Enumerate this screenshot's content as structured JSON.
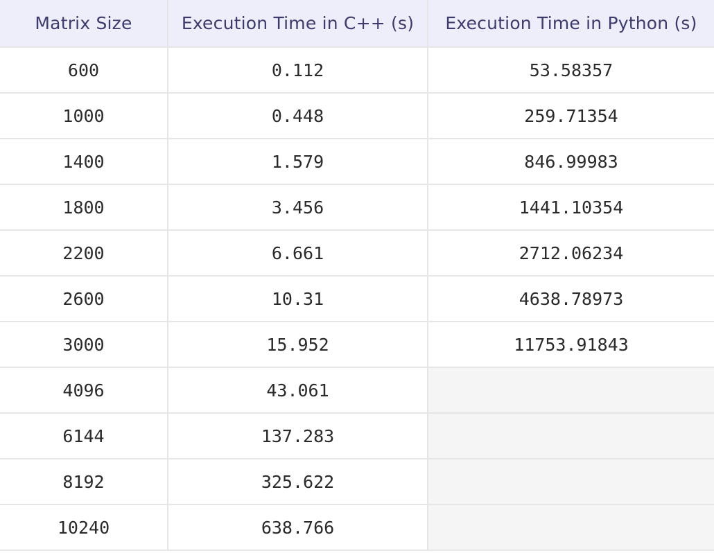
{
  "table": {
    "headers": [
      "Matrix Size",
      "Execution Time in C++ (s)",
      "Execution Time in Python (s)"
    ],
    "rows": [
      [
        "600",
        "0.112",
        "53.58357"
      ],
      [
        "1000",
        "0.448",
        "259.71354"
      ],
      [
        "1400",
        "1.579",
        "846.99983"
      ],
      [
        "1800",
        "3.456",
        "1441.10354"
      ],
      [
        "2200",
        "6.661",
        "2712.06234"
      ],
      [
        "2600",
        "10.31",
        "4638.78973"
      ],
      [
        "3000",
        "15.952",
        "11753.91843"
      ],
      [
        "4096",
        "43.061",
        ""
      ],
      [
        "6144",
        "137.283",
        ""
      ],
      [
        "8192",
        "325.622",
        ""
      ],
      [
        "10240",
        "638.766",
        ""
      ]
    ]
  }
}
